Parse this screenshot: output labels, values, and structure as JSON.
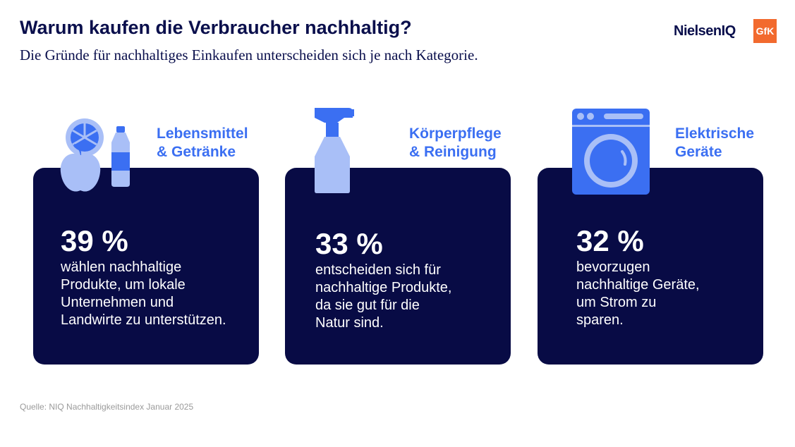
{
  "header": {
    "title": "Warum kaufen die Verbraucher nachhaltig?",
    "subtitle": "Die Gründe für nachhaltiges Einkaufen unterscheiden sich je nach Kategorie."
  },
  "logos": {
    "niq": "NielsenIQ",
    "gfk": "GfK"
  },
  "colors": {
    "navy": "#080b45",
    "accent_blue": "#3b6ff2",
    "light_blue": "#a9bff7",
    "gfk_orange": "#f26a2e"
  },
  "cards": [
    {
      "label": "Lebensmittel\n& Getränke",
      "percent": "39 %",
      "text": "wählen nachhaltige\nProdukte, um lokale\nUnternehmen und\nLandwirte zu unterstützen.",
      "icon": "food-drink-icon"
    },
    {
      "label": "Körperpflege\n& Reinigung",
      "percent": "33 %",
      "text": "entscheiden sich für\nnachhaltige Produkte,\nda sie gut für die\nNatur sind.",
      "icon": "spray-bottle-icon"
    },
    {
      "label": "Elektrische\nGeräte",
      "percent": "32 %",
      "text": "bevorzugen\nnachhaltige Geräte,\num Strom zu\nsparen.",
      "icon": "washing-machine-icon"
    }
  ],
  "source": "Quelle: NIQ Nachhaltigkeitsindex Januar 2025"
}
